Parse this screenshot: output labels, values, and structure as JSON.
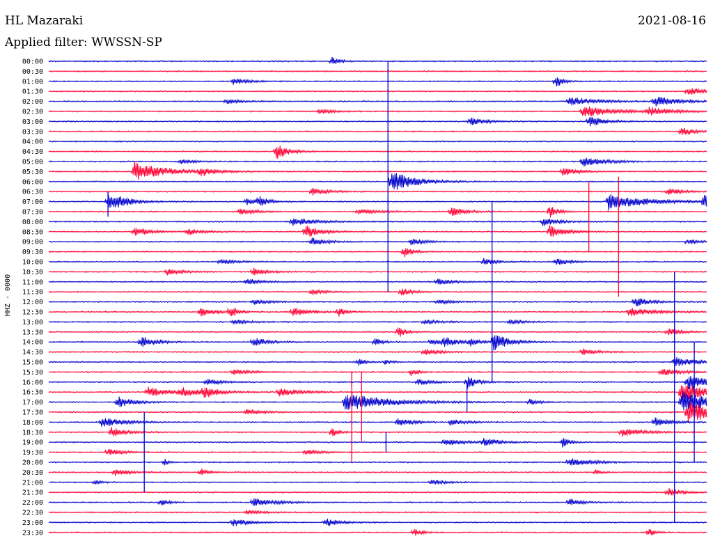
{
  "header": {
    "station": "HL Mazaraki",
    "date": "2021-08-16",
    "filter": "Applied filter: WWSSN-SP"
  },
  "chart_data": {
    "type": "line",
    "title": "",
    "ylabel": "HHZ - 0000",
    "xlabel": "",
    "y_tick_labels": [
      "00:00",
      "00:30",
      "01:00",
      "01:30",
      "02:00",
      "02:30",
      "03:00",
      "03:30",
      "04:00",
      "04:30",
      "05:00",
      "05:30",
      "06:00",
      "06:30",
      "07:00",
      "07:30",
      "08:00",
      "08:30",
      "09:00",
      "09:30",
      "10:00",
      "10:30",
      "11:00",
      "11:30",
      "12:00",
      "12:30",
      "13:00",
      "13:30",
      "14:00",
      "14:30",
      "15:00",
      "15:30",
      "16:00",
      "16:30",
      "17:00",
      "17:30",
      "18:00",
      "18:30",
      "19:00",
      "19:30",
      "20:00",
      "20:30",
      "21:00",
      "21:30",
      "22:00",
      "22:30",
      "23:00",
      "23:30"
    ],
    "trace_colors": [
      "#0000cc",
      "#ff0033"
    ],
    "grid": false,
    "legend": "none",
    "events": [
      {
        "row": 0,
        "x": 0.43,
        "amp": 1.0,
        "width": 0.012
      },
      {
        "row": 2,
        "x": 0.28,
        "amp": 0.8,
        "width": 0.02
      },
      {
        "row": 2,
        "x": 0.77,
        "amp": 1.5,
        "width": 0.01
      },
      {
        "row": 3,
        "x": 0.97,
        "amp": 1.0,
        "width": 0.025
      },
      {
        "row": 4,
        "x": 0.27,
        "amp": 0.6,
        "width": 0.02
      },
      {
        "row": 4,
        "x": 0.79,
        "amp": 1.0,
        "width": 0.04
      },
      {
        "row": 4,
        "x": 0.92,
        "amp": 1.3,
        "width": 0.03
      },
      {
        "row": 5,
        "x": 0.41,
        "amp": 0.6,
        "width": 0.02
      },
      {
        "row": 5,
        "x": 0.81,
        "amp": 1.6,
        "width": 0.04
      },
      {
        "row": 5,
        "x": 0.91,
        "amp": 1.0,
        "width": 0.03
      },
      {
        "row": 6,
        "x": 0.64,
        "amp": 1.0,
        "width": 0.02
      },
      {
        "row": 6,
        "x": 0.82,
        "amp": 1.3,
        "width": 0.02
      },
      {
        "row": 7,
        "x": 0.96,
        "amp": 1.0,
        "width": 0.02
      },
      {
        "row": 9,
        "x": 0.345,
        "amp": 2.2,
        "width": 0.015
      },
      {
        "row": 10,
        "x": 0.2,
        "amp": 0.6,
        "width": 0.02
      },
      {
        "row": 10,
        "x": 0.81,
        "amp": 1.2,
        "width": 0.03
      },
      {
        "row": 11,
        "x": 0.13,
        "amp": 2.4,
        "width": 0.04
      },
      {
        "row": 11,
        "x": 0.23,
        "amp": 1.0,
        "width": 0.02
      },
      {
        "row": 11,
        "x": 0.78,
        "amp": 1.0,
        "width": 0.02
      },
      {
        "row": 12,
        "x": 0.52,
        "amp": 3.0,
        "width": 0.03
      },
      {
        "row": 13,
        "x": 0.4,
        "amp": 1.0,
        "width": 0.02
      },
      {
        "row": 13,
        "x": 0.94,
        "amp": 0.8,
        "width": 0.02
      },
      {
        "row": 14,
        "x": 0.09,
        "amp": 1.6,
        "width": 0.02
      },
      {
        "row": 14,
        "x": 0.1,
        "amp": 1.2,
        "width": 0.02
      },
      {
        "row": 14,
        "x": 0.3,
        "amp": 0.8,
        "width": 0.02
      },
      {
        "row": 14,
        "x": 0.32,
        "amp": 1.2,
        "width": 0.01
      },
      {
        "row": 14,
        "x": 0.85,
        "amp": 2.0,
        "width": 0.05
      },
      {
        "row": 14,
        "x": 0.995,
        "amp": 2.4,
        "width": 0.01
      },
      {
        "row": 15,
        "x": 0.29,
        "amp": 0.8,
        "width": 0.02
      },
      {
        "row": 15,
        "x": 0.47,
        "amp": 0.6,
        "width": 0.03
      },
      {
        "row": 15,
        "x": 0.61,
        "amp": 1.2,
        "width": 0.02
      },
      {
        "row": 15,
        "x": 0.76,
        "amp": 1.7,
        "width": 0.01
      },
      {
        "row": 16,
        "x": 0.37,
        "amp": 1.0,
        "width": 0.03
      },
      {
        "row": 16,
        "x": 0.75,
        "amp": 1.0,
        "width": 0.02
      },
      {
        "row": 17,
        "x": 0.13,
        "amp": 1.2,
        "width": 0.02
      },
      {
        "row": 17,
        "x": 0.21,
        "amp": 0.8,
        "width": 0.02
      },
      {
        "row": 17,
        "x": 0.39,
        "amp": 1.6,
        "width": 0.02
      },
      {
        "row": 17,
        "x": 0.76,
        "amp": 1.6,
        "width": 0.02
      },
      {
        "row": 18,
        "x": 0.4,
        "amp": 0.9,
        "width": 0.02
      },
      {
        "row": 18,
        "x": 0.55,
        "amp": 0.8,
        "width": 0.02
      },
      {
        "row": 18,
        "x": 0.97,
        "amp": 0.7,
        "width": 0.015
      },
      {
        "row": 19,
        "x": 0.54,
        "amp": 1.5,
        "width": 0.01
      },
      {
        "row": 20,
        "x": 0.26,
        "amp": 0.6,
        "width": 0.02
      },
      {
        "row": 20,
        "x": 0.66,
        "amp": 0.8,
        "width": 0.02
      },
      {
        "row": 20,
        "x": 0.77,
        "amp": 0.8,
        "width": 0.02
      },
      {
        "row": 21,
        "x": 0.18,
        "amp": 0.8,
        "width": 0.02
      },
      {
        "row": 21,
        "x": 0.31,
        "amp": 1.0,
        "width": 0.02
      },
      {
        "row": 22,
        "x": 0.3,
        "amp": 0.8,
        "width": 0.02
      },
      {
        "row": 22,
        "x": 0.59,
        "amp": 0.8,
        "width": 0.02
      },
      {
        "row": 23,
        "x": 0.4,
        "amp": 0.8,
        "width": 0.015
      },
      {
        "row": 23,
        "x": 0.535,
        "amp": 0.9,
        "width": 0.015
      },
      {
        "row": 24,
        "x": 0.31,
        "amp": 0.7,
        "width": 0.02
      },
      {
        "row": 24,
        "x": 0.59,
        "amp": 0.6,
        "width": 0.02
      },
      {
        "row": 24,
        "x": 0.89,
        "amp": 1.2,
        "width": 0.02
      },
      {
        "row": 25,
        "x": 0.23,
        "amp": 1.0,
        "width": 0.02
      },
      {
        "row": 25,
        "x": 0.275,
        "amp": 1.6,
        "width": 0.01
      },
      {
        "row": 25,
        "x": 0.37,
        "amp": 1.2,
        "width": 0.02
      },
      {
        "row": 25,
        "x": 0.44,
        "amp": 1.2,
        "width": 0.01
      },
      {
        "row": 25,
        "x": 0.88,
        "amp": 1.0,
        "width": 0.04
      },
      {
        "row": 26,
        "x": 0.28,
        "amp": 0.6,
        "width": 0.02
      },
      {
        "row": 26,
        "x": 0.57,
        "amp": 0.6,
        "width": 0.02
      },
      {
        "row": 26,
        "x": 0.7,
        "amp": 0.6,
        "width": 0.02
      },
      {
        "row": 27,
        "x": 0.53,
        "amp": 1.6,
        "width": 0.01
      },
      {
        "row": 27,
        "x": 0.94,
        "amp": 0.8,
        "width": 0.02
      },
      {
        "row": 28,
        "x": 0.14,
        "amp": 1.5,
        "width": 0.02
      },
      {
        "row": 28,
        "x": 0.31,
        "amp": 1.2,
        "width": 0.02
      },
      {
        "row": 28,
        "x": 0.495,
        "amp": 1.2,
        "width": 0.01
      },
      {
        "row": 28,
        "x": 0.58,
        "amp": 0.7,
        "width": 0.02
      },
      {
        "row": 28,
        "x": 0.6,
        "amp": 1.0,
        "width": 0.02
      },
      {
        "row": 28,
        "x": 0.64,
        "amp": 1.0,
        "width": 0.01
      },
      {
        "row": 28,
        "x": 0.675,
        "amp": 2.4,
        "width": 0.02
      },
      {
        "row": 29,
        "x": 0.57,
        "amp": 0.8,
        "width": 0.02
      },
      {
        "row": 29,
        "x": 0.81,
        "amp": 0.8,
        "width": 0.02
      },
      {
        "row": 30,
        "x": 0.47,
        "amp": 0.8,
        "width": 0.01
      },
      {
        "row": 30,
        "x": 0.51,
        "amp": 0.6,
        "width": 0.01
      },
      {
        "row": 30,
        "x": 0.95,
        "amp": 1.2,
        "width": 0.03
      },
      {
        "row": 31,
        "x": 0.28,
        "amp": 0.8,
        "width": 0.02
      },
      {
        "row": 31,
        "x": 0.55,
        "amp": 0.8,
        "width": 0.01
      },
      {
        "row": 31,
        "x": 0.93,
        "amp": 0.8,
        "width": 0.03
      },
      {
        "row": 32,
        "x": 0.24,
        "amp": 0.8,
        "width": 0.02
      },
      {
        "row": 32,
        "x": 0.56,
        "amp": 0.8,
        "width": 0.02
      },
      {
        "row": 32,
        "x": 0.635,
        "amp": 1.6,
        "width": 0.015
      },
      {
        "row": 32,
        "x": 0.97,
        "amp": 2.0,
        "width": 0.03
      },
      {
        "row": 33,
        "x": 0.15,
        "amp": 1.2,
        "width": 0.03
      },
      {
        "row": 33,
        "x": 0.2,
        "amp": 1.0,
        "width": 0.03
      },
      {
        "row": 33,
        "x": 0.235,
        "amp": 1.2,
        "width": 0.02
      },
      {
        "row": 33,
        "x": 0.35,
        "amp": 1.0,
        "width": 0.03
      },
      {
        "row": 33,
        "x": 0.96,
        "amp": 2.6,
        "width": 0.03
      },
      {
        "row": 34,
        "x": 0.105,
        "amp": 1.4,
        "width": 0.02
      },
      {
        "row": 34,
        "x": 0.45,
        "amp": 2.2,
        "width": 0.06
      },
      {
        "row": 34,
        "x": 0.73,
        "amp": 0.8,
        "width": 0.01
      },
      {
        "row": 34,
        "x": 0.96,
        "amp": 3.0,
        "width": 0.04
      },
      {
        "row": 35,
        "x": 0.3,
        "amp": 0.8,
        "width": 0.02
      },
      {
        "row": 35,
        "x": 0.97,
        "amp": 3.0,
        "width": 0.04
      },
      {
        "row": 36,
        "x": 0.08,
        "amp": 1.2,
        "width": 0.03
      },
      {
        "row": 36,
        "x": 0.53,
        "amp": 1.0,
        "width": 0.02
      },
      {
        "row": 36,
        "x": 0.61,
        "amp": 0.8,
        "width": 0.02
      },
      {
        "row": 36,
        "x": 0.92,
        "amp": 1.2,
        "width": 0.02
      },
      {
        "row": 37,
        "x": 0.095,
        "amp": 1.2,
        "width": 0.02
      },
      {
        "row": 37,
        "x": 0.43,
        "amp": 1.2,
        "width": 0.01
      },
      {
        "row": 37,
        "x": 0.87,
        "amp": 1.0,
        "width": 0.03
      },
      {
        "row": 38,
        "x": 0.6,
        "amp": 0.8,
        "width": 0.03
      },
      {
        "row": 38,
        "x": 0.66,
        "amp": 1.0,
        "width": 0.02
      },
      {
        "row": 38,
        "x": 0.78,
        "amp": 1.2,
        "width": 0.01
      },
      {
        "row": 39,
        "x": 0.09,
        "amp": 0.8,
        "width": 0.02
      },
      {
        "row": 39,
        "x": 0.39,
        "amp": 0.6,
        "width": 0.02
      },
      {
        "row": 40,
        "x": 0.175,
        "amp": 1.0,
        "width": 0.005
      },
      {
        "row": 40,
        "x": 0.79,
        "amp": 1.0,
        "width": 0.03
      },
      {
        "row": 41,
        "x": 0.1,
        "amp": 0.8,
        "width": 0.02
      },
      {
        "row": 41,
        "x": 0.23,
        "amp": 1.0,
        "width": 0.01
      },
      {
        "row": 41,
        "x": 0.83,
        "amp": 0.6,
        "width": 0.01
      },
      {
        "row": 42,
        "x": 0.07,
        "amp": 0.6,
        "width": 0.01
      },
      {
        "row": 42,
        "x": 0.58,
        "amp": 0.6,
        "width": 0.02
      },
      {
        "row": 43,
        "x": 0.94,
        "amp": 1.0,
        "width": 0.02
      },
      {
        "row": 44,
        "x": 0.17,
        "amp": 1.0,
        "width": 0.01
      },
      {
        "row": 44,
        "x": 0.31,
        "amp": 1.0,
        "width": 0.03
      },
      {
        "row": 44,
        "x": 0.79,
        "amp": 0.8,
        "width": 0.02
      },
      {
        "row": 45,
        "x": 0.3,
        "amp": 0.6,
        "width": 0.02
      },
      {
        "row": 46,
        "x": 0.28,
        "amp": 1.0,
        "width": 0.02
      },
      {
        "row": 46,
        "x": 0.42,
        "amp": 1.0,
        "width": 0.02
      },
      {
        "row": 47,
        "x": 0.555,
        "amp": 1.0,
        "width": 0.01
      },
      {
        "row": 47,
        "x": 0.91,
        "amp": 1.0,
        "width": 0.01
      }
    ],
    "spikes": [
      {
        "row": 12,
        "x": 0.515,
        "up": 12,
        "down": 11
      },
      {
        "row": 14,
        "x": 0.09,
        "up": 1,
        "down": 1.5
      },
      {
        "row": 17,
        "x": 0.82,
        "up": 5,
        "down": 2
      },
      {
        "row": 17,
        "x": 0.865,
        "up": 5.5,
        "down": 6.5
      },
      {
        "row": 28,
        "x": 0.673,
        "up": 14,
        "down": 4
      },
      {
        "row": 33,
        "x": 0.46,
        "up": 2,
        "down": 7
      },
      {
        "row": 33,
        "x": 0.475,
        "up": 2,
        "down": 5
      },
      {
        "row": 34,
        "x": 0.635,
        "up": 2,
        "down": 1
      },
      {
        "row": 34,
        "x": 0.95,
        "up": 13,
        "down": 12
      },
      {
        "row": 34,
        "x": 0.98,
        "up": 6,
        "down": 6
      },
      {
        "row": 36,
        "x": 0.145,
        "up": 1,
        "down": 7
      },
      {
        "row": 38,
        "x": 0.512,
        "up": 1,
        "down": 1
      }
    ]
  }
}
